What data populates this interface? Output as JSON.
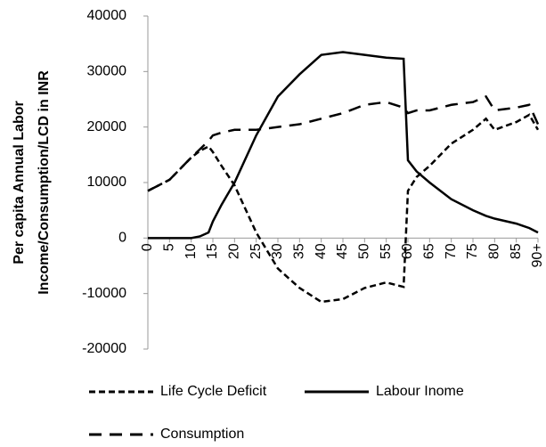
{
  "chart_data": {
    "type": "line",
    "y_label": [
      "Per  capita Annual Labor",
      "Income/Consumption/LCD in INR"
    ],
    "x": [
      0,
      5,
      10,
      12,
      14,
      15,
      17,
      20,
      25,
      30,
      35,
      40,
      45,
      50,
      55,
      59,
      60,
      62,
      65,
      70,
      75,
      78,
      80,
      85,
      88,
      90
    ],
    "series": [
      {
        "name": "Life Cycle Deficit",
        "color": "#000000",
        "dash": "short",
        "values": [
          8500,
          10500,
          14500,
          15700,
          16500,
          15500,
          13000,
          9500,
          1000,
          -5500,
          -9000,
          -11500,
          -11000,
          -9000,
          -8000,
          -8800,
          8500,
          11000,
          13000,
          17000,
          19500,
          21500,
          19500,
          20900,
          22200,
          19500
        ]
      },
      {
        "name": "Labour Inome",
        "color": "#000000",
        "dash": "solid",
        "values": [
          0,
          0,
          0,
          300,
          1000,
          3000,
          6000,
          10000,
          18500,
          25500,
          29500,
          33000,
          33500,
          33000,
          32500,
          32300,
          14000,
          12000,
          10000,
          7000,
          5000,
          4000,
          3500,
          2600,
          1800,
          1000
        ]
      },
      {
        "name": "Consumption",
        "color": "#000000",
        "dash": "long",
        "values": [
          8500,
          10500,
          14500,
          16000,
          17500,
          18500,
          19000,
          19500,
          19500,
          20000,
          20500,
          21500,
          22500,
          24000,
          24500,
          23500,
          22500,
          23000,
          23000,
          24000,
          24500,
          25500,
          23000,
          23500,
          24000,
          20500
        ]
      }
    ],
    "xlim": [
      0,
      90
    ],
    "xticks": [
      0,
      5,
      10,
      15,
      20,
      25,
      30,
      35,
      40,
      45,
      50,
      55,
      60,
      65,
      70,
      75,
      80,
      85,
      {
        "value": 90,
        "label": "90+"
      }
    ],
    "ylim": [
      -20000,
      40000
    ],
    "yticks": [
      -20000,
      -10000,
      0,
      10000,
      20000,
      30000,
      40000
    ],
    "grid": false,
    "legend": "bottom"
  }
}
